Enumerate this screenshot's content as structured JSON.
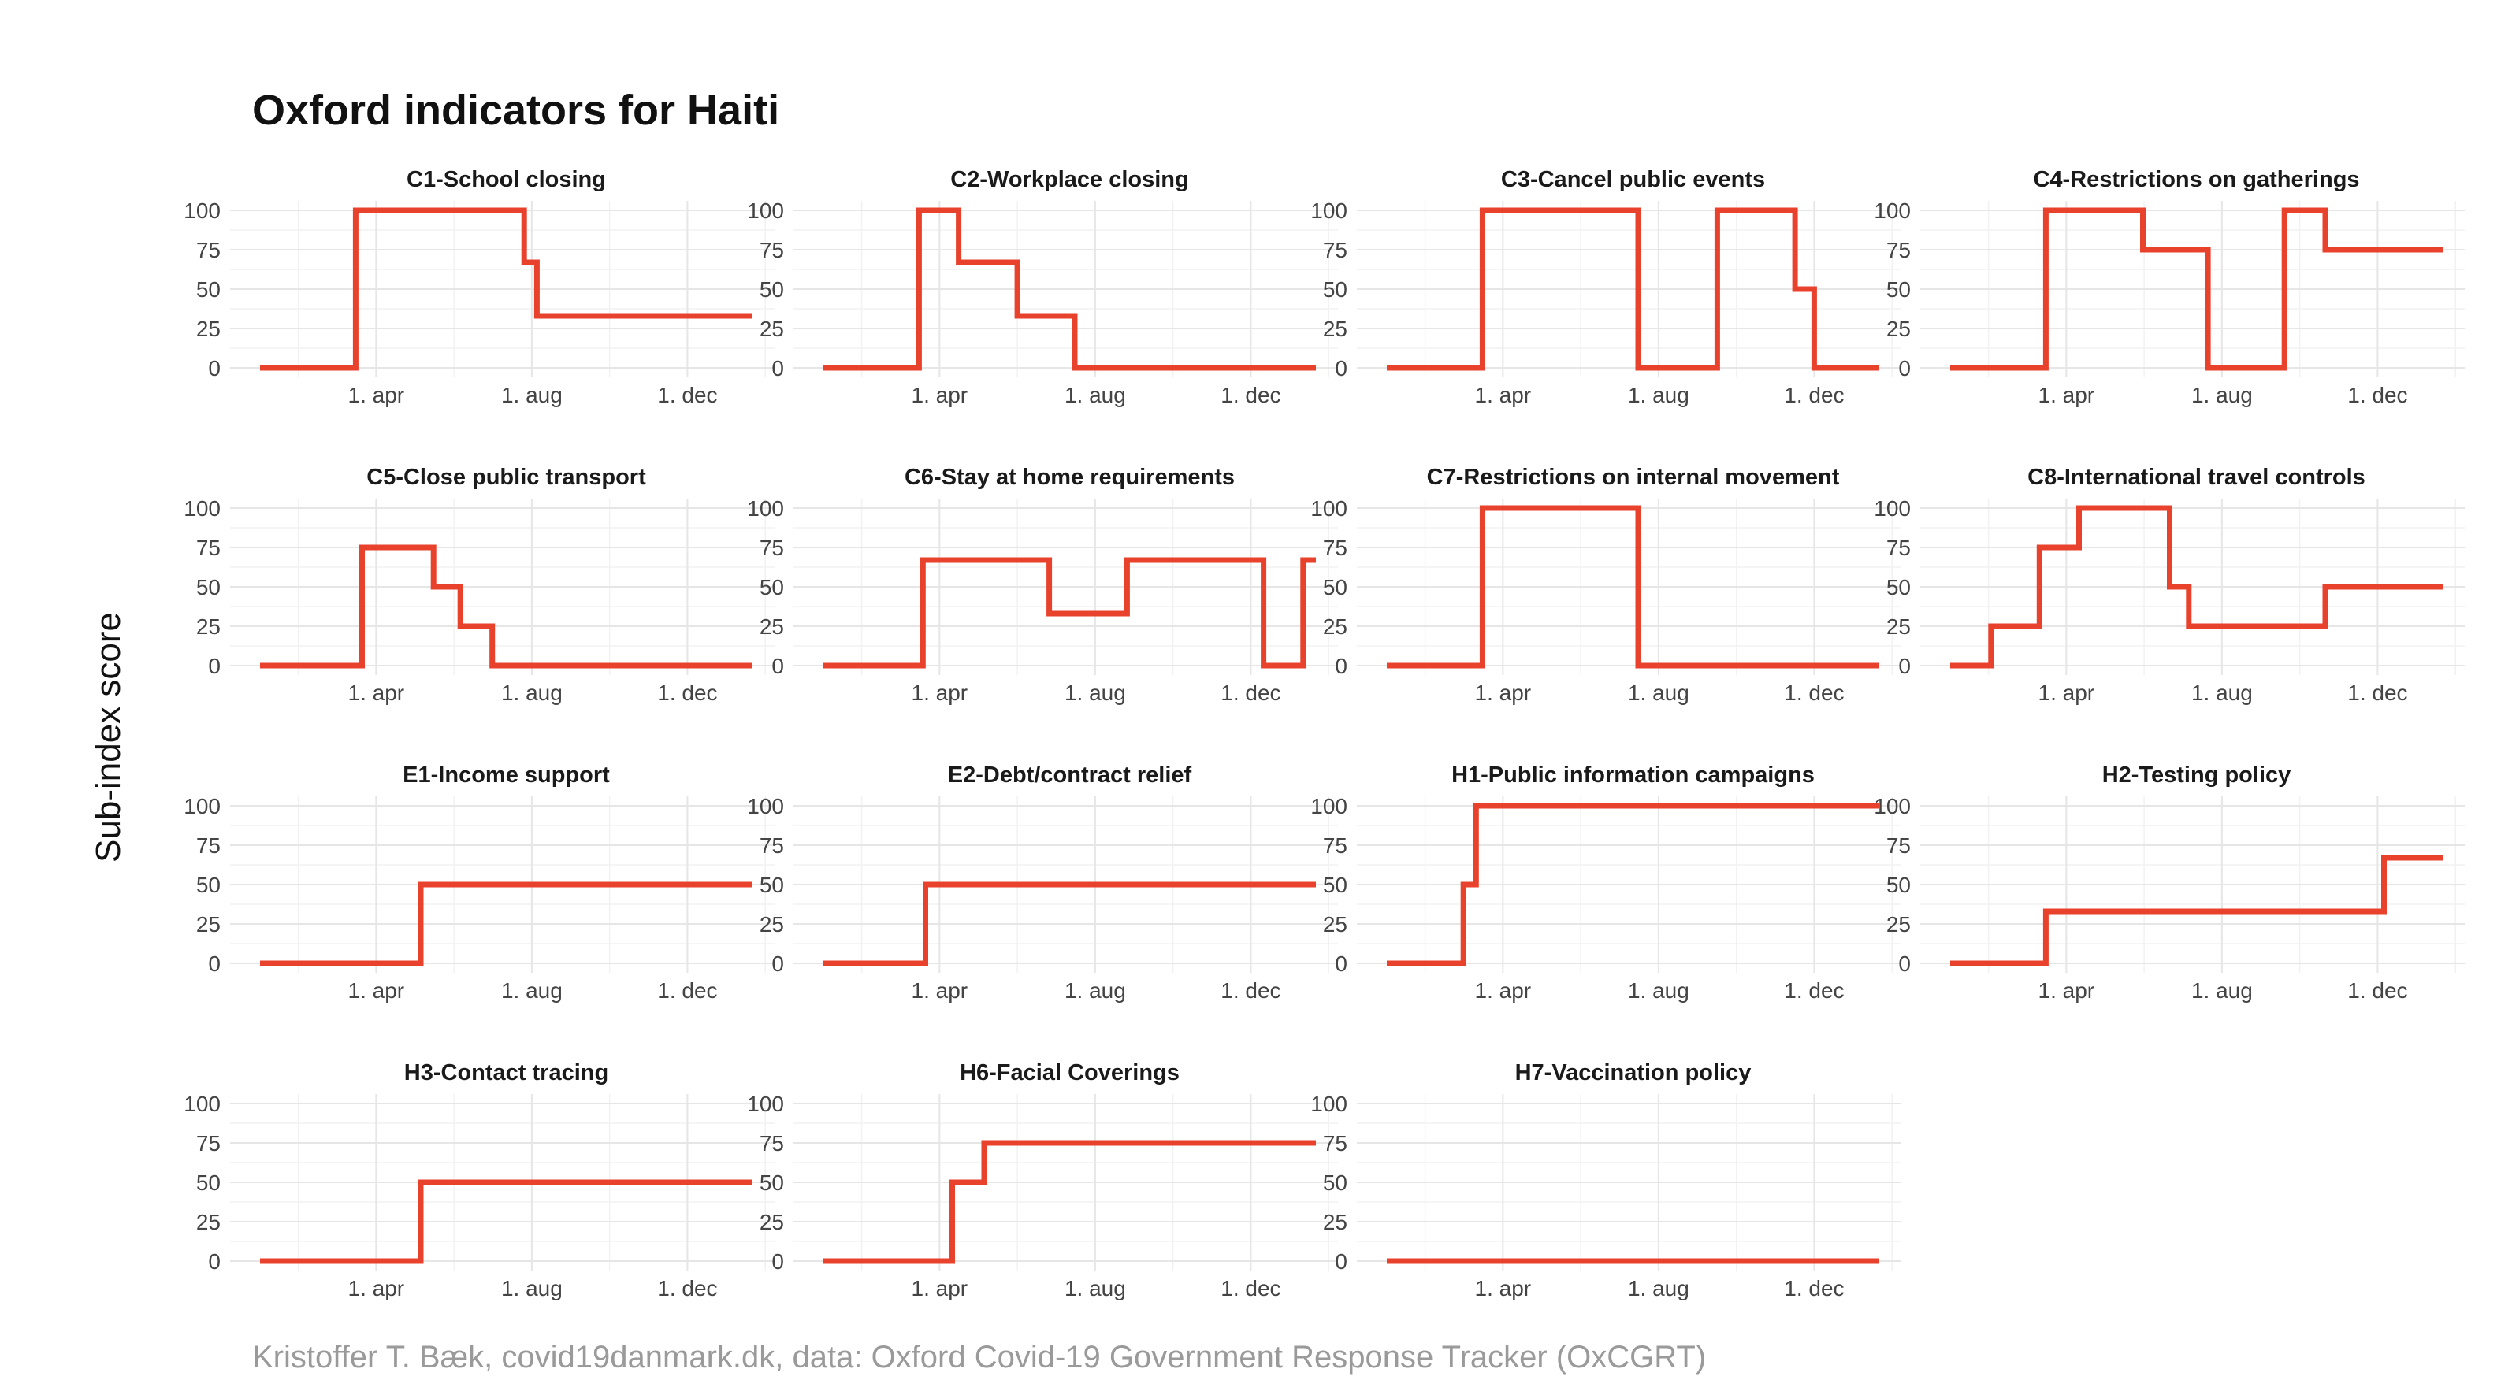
{
  "title": "Oxford indicators for Haiti",
  "ylabel": "Sub-index score",
  "caption": "Kristoffer T. Bæk, covid19danmark.dk, data: Oxford Covid-19 Government Response Tracker (OxCGRT)",
  "colors": {
    "series": "#e8412c",
    "grid": "#e6e6e6"
  },
  "chart_data": {
    "type": "line",
    "step": true,
    "grid": true,
    "x_units": "date",
    "xlim": [
      "2020-01-01",
      "2021-01-21"
    ],
    "ylim": [
      0,
      100
    ],
    "y_ticks": [
      0,
      25,
      50,
      75,
      100
    ],
    "x_ticks": [
      {
        "date": "2020-04-01",
        "label": "1. apr"
      },
      {
        "date": "2020-08-01",
        "label": "1. aug"
      },
      {
        "date": "2020-12-01",
        "label": "1. dec"
      }
    ],
    "panels": [
      {
        "name": "C1-School closing",
        "points": [
          [
            "2020-01-01",
            0
          ],
          [
            "2020-03-16",
            100
          ],
          [
            "2020-07-26",
            67
          ],
          [
            "2020-08-05",
            33
          ],
          [
            "2021-01-21",
            33
          ]
        ]
      },
      {
        "name": "C2-Workplace closing",
        "points": [
          [
            "2020-01-01",
            0
          ],
          [
            "2020-03-16",
            100
          ],
          [
            "2020-04-16",
            67
          ],
          [
            "2020-06-01",
            33
          ],
          [
            "2020-07-16",
            0
          ],
          [
            "2021-01-21",
            0
          ]
        ]
      },
      {
        "name": "C3-Cancel public events",
        "points": [
          [
            "2020-01-01",
            0
          ],
          [
            "2020-03-16",
            100
          ],
          [
            "2020-07-16",
            0
          ],
          [
            "2020-09-16",
            100
          ],
          [
            "2020-11-16",
            50
          ],
          [
            "2020-12-01",
            0
          ],
          [
            "2021-01-21",
            0
          ]
        ]
      },
      {
        "name": "C4-Restrictions on gatherings",
        "points": [
          [
            "2020-01-01",
            0
          ],
          [
            "2020-03-16",
            100
          ],
          [
            "2020-05-31",
            75
          ],
          [
            "2020-07-21",
            0
          ],
          [
            "2020-09-19",
            100
          ],
          [
            "2020-10-21",
            75
          ],
          [
            "2021-01-21",
            75
          ]
        ]
      },
      {
        "name": "C5-Close public transport",
        "points": [
          [
            "2020-01-01",
            0
          ],
          [
            "2020-03-21",
            75
          ],
          [
            "2020-05-16",
            50
          ],
          [
            "2020-06-06",
            25
          ],
          [
            "2020-07-01",
            0
          ],
          [
            "2021-01-21",
            0
          ]
        ]
      },
      {
        "name": "C6-Stay at home requirements",
        "points": [
          [
            "2020-01-01",
            0
          ],
          [
            "2020-03-19",
            67
          ],
          [
            "2020-06-26",
            33
          ],
          [
            "2020-08-26",
            67
          ],
          [
            "2020-12-11",
            0
          ],
          [
            "2021-01-11",
            67
          ],
          [
            "2021-01-21",
            67
          ]
        ]
      },
      {
        "name": "C7-Restrictions on internal movement",
        "points": [
          [
            "2020-01-01",
            0
          ],
          [
            "2020-03-16",
            100
          ],
          [
            "2020-07-16",
            0
          ],
          [
            "2021-01-21",
            0
          ]
        ]
      },
      {
        "name": "C8-International travel controls",
        "points": [
          [
            "2020-01-01",
            0
          ],
          [
            "2020-02-02",
            25
          ],
          [
            "2020-03-11",
            75
          ],
          [
            "2020-04-11",
            100
          ],
          [
            "2020-06-21",
            50
          ],
          [
            "2020-07-06",
            25
          ],
          [
            "2020-10-21",
            50
          ],
          [
            "2021-01-21",
            50
          ]
        ]
      },
      {
        "name": "E1-Income support",
        "points": [
          [
            "2020-01-01",
            0
          ],
          [
            "2020-05-06",
            50
          ],
          [
            "2021-01-21",
            50
          ]
        ]
      },
      {
        "name": "E2-Debt/contract relief",
        "points": [
          [
            "2020-01-01",
            0
          ],
          [
            "2020-03-21",
            50
          ],
          [
            "2021-01-21",
            50
          ]
        ]
      },
      {
        "name": "H1-Public information campaigns",
        "points": [
          [
            "2020-01-01",
            0
          ],
          [
            "2020-03-01",
            50
          ],
          [
            "2020-03-11",
            100
          ],
          [
            "2021-01-21",
            100
          ]
        ]
      },
      {
        "name": "H2-Testing policy",
        "points": [
          [
            "2020-01-01",
            0
          ],
          [
            "2020-03-16",
            33
          ],
          [
            "2020-12-06",
            67
          ],
          [
            "2021-01-21",
            67
          ]
        ]
      },
      {
        "name": "H3-Contact tracing",
        "points": [
          [
            "2020-01-01",
            0
          ],
          [
            "2020-05-06",
            50
          ],
          [
            "2021-01-21",
            50
          ]
        ]
      },
      {
        "name": "H6-Facial Coverings",
        "points": [
          [
            "2020-01-01",
            0
          ],
          [
            "2020-04-11",
            50
          ],
          [
            "2020-05-06",
            75
          ],
          [
            "2021-01-21",
            75
          ]
        ]
      },
      {
        "name": "H7-Vaccination policy",
        "points": [
          [
            "2020-01-01",
            0
          ],
          [
            "2021-01-21",
            0
          ]
        ]
      }
    ]
  }
}
